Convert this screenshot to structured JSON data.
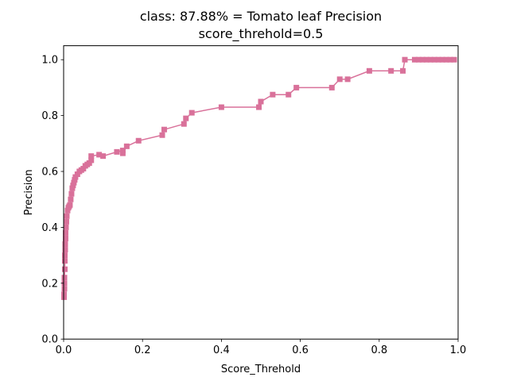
{
  "chart_data": {
    "type": "line",
    "title": "class: 87.88% = Tomato leaf Precision",
    "subtitle": "score_threhold=0.5",
    "xlabel": "Score_Threhold",
    "ylabel": "Precision",
    "xlim": [
      0,
      1
    ],
    "ylim": [
      0,
      1.05
    ],
    "grid": false,
    "x_ticks": [
      "0.0",
      "0.2",
      "0.4",
      "0.6",
      "0.8",
      "1.0"
    ],
    "y_ticks": [
      "0.0",
      "0.2",
      "0.4",
      "0.6",
      "0.8",
      "1.0"
    ],
    "series": [
      {
        "color": "#d9719a",
        "marker": "square",
        "x": [
          0.001,
          0.001,
          0.002,
          0.002,
          0.002,
          0.003,
          0.003,
          0.003,
          0.004,
          0.004,
          0.005,
          0.005,
          0.006,
          0.007,
          0.008,
          0.01,
          0.012,
          0.014,
          0.016,
          0.018,
          0.02,
          0.022,
          0.024,
          0.026,
          0.028,
          0.03,
          0.035,
          0.04,
          0.045,
          0.05,
          0.055,
          0.06,
          0.065,
          0.07,
          0.07,
          0.09,
          0.1,
          0.135,
          0.15,
          0.15,
          0.16,
          0.19,
          0.25,
          0.255,
          0.305,
          0.31,
          0.325,
          0.4,
          0.495,
          0.5,
          0.53,
          0.57,
          0.59,
          0.68,
          0.7,
          0.72,
          0.775,
          0.83,
          0.86,
          0.865,
          0.89,
          0.9,
          0.91,
          0.92,
          0.93,
          0.94,
          0.95,
          0.96,
          0.97,
          0.98,
          0.99
        ],
        "y": [
          0.15,
          0.16,
          0.18,
          0.2,
          0.22,
          0.25,
          0.28,
          0.3,
          0.32,
          0.34,
          0.36,
          0.38,
          0.4,
          0.42,
          0.44,
          0.46,
          0.47,
          0.475,
          0.48,
          0.5,
          0.52,
          0.54,
          0.55,
          0.56,
          0.57,
          0.58,
          0.59,
          0.6,
          0.605,
          0.61,
          0.62,
          0.625,
          0.63,
          0.64,
          0.655,
          0.66,
          0.655,
          0.67,
          0.675,
          0.665,
          0.69,
          0.71,
          0.73,
          0.75,
          0.77,
          0.79,
          0.81,
          0.83,
          0.83,
          0.85,
          0.875,
          0.875,
          0.9,
          0.9,
          0.93,
          0.93,
          0.96,
          0.96,
          0.96,
          1.0,
          1.0,
          1.0,
          1.0,
          1.0,
          1.0,
          1.0,
          1.0,
          1.0,
          1.0,
          1.0,
          1.0
        ]
      }
    ]
  }
}
